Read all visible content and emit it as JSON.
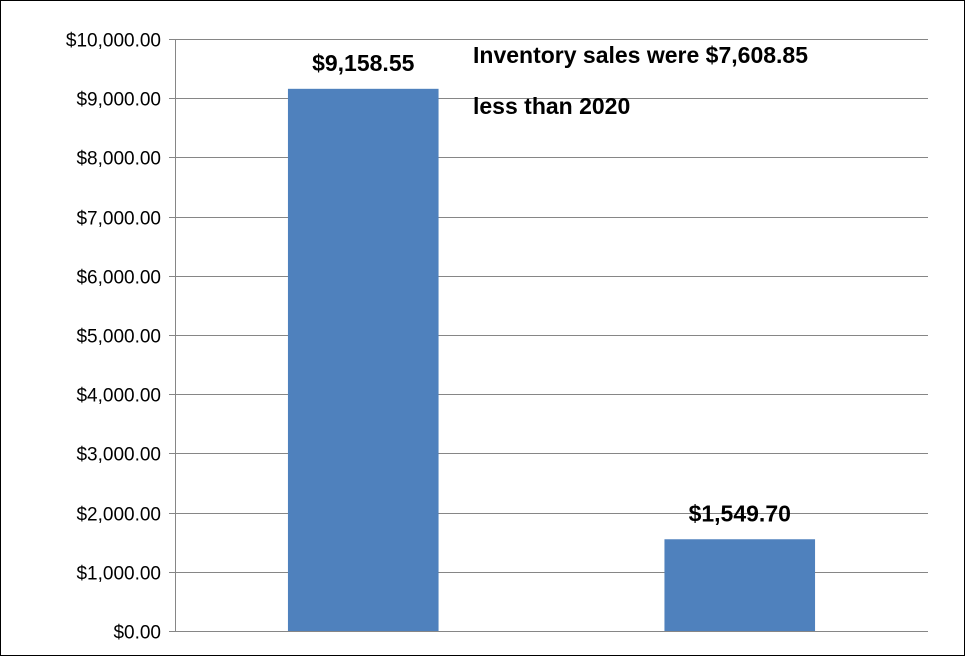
{
  "chart_data": {
    "type": "bar",
    "categories": [
      "",
      ""
    ],
    "values": [
      9158.55,
      1549.7
    ],
    "data_labels": [
      "$9,158.55",
      "$1,549.70"
    ],
    "title": "",
    "xlabel": "",
    "ylabel": "",
    "ylim": [
      0,
      10000
    ],
    "yticks": [
      0,
      1000,
      2000,
      3000,
      4000,
      5000,
      6000,
      7000,
      8000,
      9000,
      10000
    ],
    "ytick_labels": [
      "$0.00",
      "$1,000.00",
      "$2,000.00",
      "$3,000.00",
      "$4,000.00",
      "$5,000.00",
      "$6,000.00",
      "$7,000.00",
      "$8,000.00",
      "$9,000.00",
      "$10,000.00"
    ],
    "grid": true,
    "legend": "none",
    "bar_color": "#4F81BD",
    "annotation": {
      "lines": [
        "Inventory sales were $7,608.85",
        "less than 2020"
      ]
    }
  }
}
